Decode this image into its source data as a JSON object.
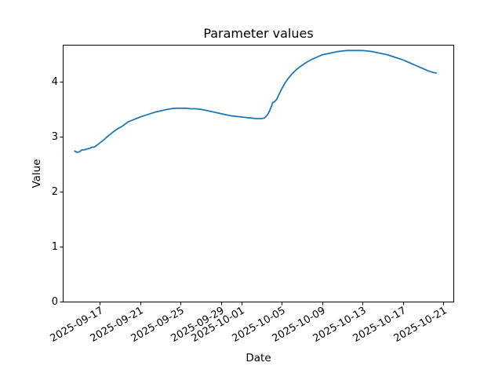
{
  "figure": {
    "background": "#ffffff",
    "axes_edge_color": "#000000"
  },
  "chart_data": {
    "type": "line",
    "title": "Parameter values",
    "xlabel": "Date",
    "ylabel": "Value",
    "grid": false,
    "legend": false,
    "line_color": "#1f77b4",
    "line_width": 1.8,
    "y_ticks": [
      "0",
      "1",
      "2",
      "3",
      "4"
    ],
    "y_tick_values": [
      0,
      1,
      2,
      3,
      4
    ],
    "ylim": [
      0,
      4.66
    ],
    "x_tick_labels": [
      "2025-09-17",
      "2025-09-21",
      "2025-09-25",
      "2025-09-29",
      "2025-10-01",
      "2025-10-05",
      "2025-10-09",
      "2025-10-13",
      "2025-10-17",
      "2025-10-21"
    ],
    "x_tick_positions_day": [
      17,
      21,
      25,
      29,
      31,
      35,
      39,
      43,
      47,
      51
    ],
    "x_day_scale": "day d of 2025-09 = d, day d of 2025-10 = 30 + d",
    "xlim_days": [
      13.4,
      52.0
    ],
    "x_tick_rotation_deg": 30,
    "series": [
      {
        "name": "Parameter values",
        "points": [
          [
            14.5,
            2.74
          ],
          [
            14.7,
            2.72
          ],
          [
            14.9,
            2.72
          ],
          [
            15.0,
            2.73
          ],
          [
            15.2,
            2.76
          ],
          [
            15.4,
            2.76
          ],
          [
            15.6,
            2.77
          ],
          [
            15.8,
            2.78
          ],
          [
            16.0,
            2.79
          ],
          [
            16.2,
            2.81
          ],
          [
            16.4,
            2.81
          ],
          [
            16.6,
            2.83
          ],
          [
            16.8,
            2.86
          ],
          [
            17.0,
            2.89
          ],
          [
            17.3,
            2.93
          ],
          [
            17.6,
            2.98
          ],
          [
            18.0,
            3.04
          ],
          [
            18.4,
            3.1
          ],
          [
            18.8,
            3.15
          ],
          [
            19.2,
            3.19
          ],
          [
            19.5,
            3.23
          ],
          [
            19.8,
            3.27
          ],
          [
            20.2,
            3.3
          ],
          [
            20.6,
            3.33
          ],
          [
            21.0,
            3.36
          ],
          [
            21.5,
            3.39
          ],
          [
            22.0,
            3.42
          ],
          [
            22.5,
            3.45
          ],
          [
            23.0,
            3.47
          ],
          [
            23.5,
            3.49
          ],
          [
            24.0,
            3.51
          ],
          [
            24.5,
            3.52
          ],
          [
            25.0,
            3.52
          ],
          [
            25.5,
            3.52
          ],
          [
            26.0,
            3.51
          ],
          [
            26.5,
            3.51
          ],
          [
            27.0,
            3.5
          ],
          [
            27.5,
            3.48
          ],
          [
            28.0,
            3.46
          ],
          [
            28.5,
            3.44
          ],
          [
            29.0,
            3.42
          ],
          [
            29.5,
            3.4
          ],
          [
            30.0,
            3.38
          ],
          [
            30.5,
            3.37
          ],
          [
            31.0,
            3.36
          ],
          [
            31.5,
            3.35
          ],
          [
            32.0,
            3.34
          ],
          [
            32.5,
            3.33
          ],
          [
            33.0,
            3.33
          ],
          [
            33.3,
            3.34
          ],
          [
            33.6,
            3.4
          ],
          [
            33.8,
            3.47
          ],
          [
            34.0,
            3.56
          ],
          [
            34.1,
            3.62
          ],
          [
            34.3,
            3.64
          ],
          [
            34.5,
            3.68
          ],
          [
            34.7,
            3.76
          ],
          [
            35.0,
            3.87
          ],
          [
            35.3,
            3.97
          ],
          [
            35.6,
            4.05
          ],
          [
            36.0,
            4.14
          ],
          [
            36.5,
            4.23
          ],
          [
            37.0,
            4.3
          ],
          [
            37.5,
            4.36
          ],
          [
            38.0,
            4.41
          ],
          [
            38.5,
            4.45
          ],
          [
            39.0,
            4.49
          ],
          [
            39.5,
            4.51
          ],
          [
            40.0,
            4.53
          ],
          [
            40.5,
            4.55
          ],
          [
            41.0,
            4.56
          ],
          [
            41.5,
            4.57
          ],
          [
            42.0,
            4.57
          ],
          [
            42.5,
            4.57
          ],
          [
            43.0,
            4.57
          ],
          [
            43.5,
            4.56
          ],
          [
            44.0,
            4.55
          ],
          [
            44.5,
            4.53
          ],
          [
            45.0,
            4.51
          ],
          [
            45.5,
            4.49
          ],
          [
            46.0,
            4.46
          ],
          [
            46.5,
            4.43
          ],
          [
            47.0,
            4.4
          ],
          [
            47.5,
            4.36
          ],
          [
            48.0,
            4.32
          ],
          [
            48.5,
            4.28
          ],
          [
            49.0,
            4.24
          ],
          [
            49.5,
            4.2
          ],
          [
            50.0,
            4.17
          ],
          [
            50.3,
            4.16
          ]
        ]
      }
    ]
  }
}
